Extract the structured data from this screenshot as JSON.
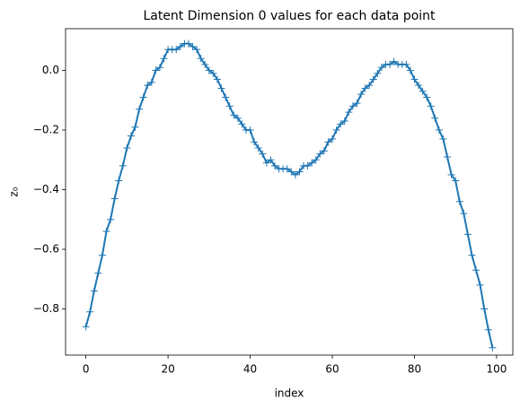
{
  "chart_data": {
    "type": "line",
    "title": "Latent Dimension 0 values for each data point",
    "xlabel": "index",
    "ylabel": "z₀",
    "x": [
      0,
      1,
      2,
      3,
      4,
      5,
      6,
      7,
      8,
      9,
      10,
      11,
      12,
      13,
      14,
      15,
      16,
      17,
      18,
      19,
      20,
      21,
      22,
      23,
      24,
      25,
      26,
      27,
      28,
      29,
      30,
      31,
      32,
      33,
      34,
      35,
      36,
      37,
      38,
      39,
      40,
      41,
      42,
      43,
      44,
      45,
      46,
      47,
      48,
      49,
      50,
      51,
      52,
      53,
      54,
      55,
      56,
      57,
      58,
      59,
      60,
      61,
      62,
      63,
      64,
      65,
      66,
      67,
      68,
      69,
      70,
      71,
      72,
      73,
      74,
      75,
      76,
      77,
      78,
      79,
      80,
      81,
      82,
      83,
      84,
      85,
      86,
      87,
      88,
      89,
      90,
      91,
      92,
      93,
      94,
      95,
      96,
      97,
      98,
      99
    ],
    "series": [
      {
        "name": "z0",
        "color": "#1f77b4",
        "marker": "+",
        "values": [
          -0.86,
          -0.81,
          -0.74,
          -0.68,
          -0.62,
          -0.54,
          -0.5,
          -0.43,
          -0.37,
          -0.32,
          -0.26,
          -0.22,
          -0.19,
          -0.13,
          -0.09,
          -0.05,
          -0.04,
          0.0,
          0.01,
          0.04,
          0.07,
          0.07,
          0.07,
          0.08,
          0.09,
          0.09,
          0.08,
          0.07,
          0.04,
          0.02,
          0.0,
          -0.01,
          -0.03,
          -0.06,
          -0.09,
          -0.12,
          -0.15,
          -0.16,
          -0.18,
          -0.2,
          -0.2,
          -0.24,
          -0.26,
          -0.28,
          -0.31,
          -0.3,
          -0.32,
          -0.33,
          -0.33,
          -0.33,
          -0.34,
          -0.35,
          -0.34,
          -0.32,
          -0.32,
          -0.31,
          -0.3,
          -0.28,
          -0.27,
          -0.24,
          -0.23,
          -0.2,
          -0.18,
          -0.17,
          -0.14,
          -0.12,
          -0.11,
          -0.08,
          -0.06,
          -0.05,
          -0.03,
          -0.01,
          0.01,
          0.02,
          0.02,
          0.03,
          0.02,
          0.02,
          0.02,
          0.0,
          -0.03,
          -0.05,
          -0.07,
          -0.09,
          -0.12,
          -0.16,
          -0.2,
          -0.23,
          -0.29,
          -0.35,
          -0.37,
          -0.44,
          -0.48,
          -0.55,
          -0.62,
          -0.67,
          -0.72,
          -0.8,
          -0.87,
          -0.93
        ]
      }
    ],
    "xlim": [
      -4.95,
      103.95
    ],
    "xticks": [
      0,
      20,
      40,
      60,
      80,
      100
    ],
    "ylim": [
      -0.955,
      0.14
    ],
    "yticks": [
      {
        "value": -0.8,
        "label": "−0.8"
      },
      {
        "value": -0.6,
        "label": "−0.6"
      },
      {
        "value": -0.4,
        "label": "−0.4"
      },
      {
        "value": -0.2,
        "label": "−0.2"
      },
      {
        "value": 0,
        "label": "0.0"
      }
    ],
    "grid": false
  }
}
